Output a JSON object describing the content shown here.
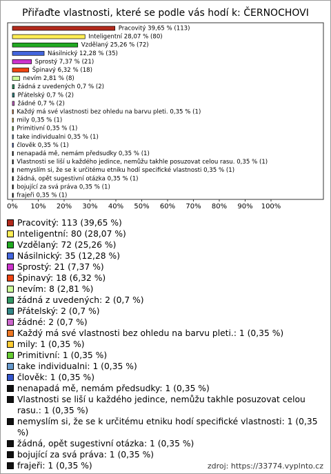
{
  "chart_data": {
    "type": "bar",
    "orientation": "horizontal",
    "title": "Přiřaďte vlastnosti, které se podle vás hodí k: ČERNOCHOVI",
    "categories": [
      "Pracovitý",
      "Inteligentní",
      "Vzdělaný",
      "Násilnický",
      "Sprostý",
      "Špinavý",
      "nevím",
      "žádná z uvedených",
      "Přátelský",
      "žádné",
      "Každý má své vlastnosti bez ohledu na barvu pleti.",
      "mily",
      "Primitivní",
      "take individualni",
      "člověk",
      "nenapadá mě, nemám předsudky",
      "Vlastnosti se liší u každého jedince, nemůžu takhle posuzovat celou rasu.",
      "nemyslím si, že se k určitému etniku hodí specifické vlastnosti",
      "žádná, opět sugestivní otázka",
      "bojující za svá práva",
      "frajeři"
    ],
    "values": [
      39.65,
      28.07,
      25.26,
      12.28,
      7.37,
      6.32,
      2.81,
      0.7,
      0.7,
      0.7,
      0.35,
      0.35,
      0.35,
      0.35,
      0.35,
      0.35,
      0.35,
      0.35,
      0.35,
      0.35,
      0.35
    ],
    "value_labels": [
      "Pracovitý 39,65 % (113)",
      "Inteligentní 28,07 % (80)",
      "Vzdělaný 25,26 % (72)",
      "Násilnický 12,28 % (35)",
      "Sprostý 7,37 % (21)",
      "Špinavý 6,32 % (18)",
      "nevím 2,81 % (8)",
      "žádná z uvedených 0,7 % (2)",
      "Přátelský 0,7 % (2)",
      "žádné 0,7 % (2)",
      "Každý má své vlastnosti bez ohledu na barvu pleti. 0,35 % (1)",
      "mily 0,35 % (1)",
      "Primitivní 0,35 % (1)",
      "take individualni 0,35 % (1)",
      "člověk 0,35 % (1)",
      "nenapadá mě, nemám předsudky 0,35 % (1)",
      "Vlastnosti se liší u každého jedince, nemůžu takhle posuzovat celou rasu. 0,35 % (1)",
      "nemyslím si, že se k určitému etniku hodí specifické vlastnosti 0,35 % (1)",
      "žádná, opět sugestivní otázka 0,35 % (1)",
      "bojující za svá práva 0,35 % (1)",
      "frajeři 0,35 % (1)"
    ],
    "colors": [
      "#b22a1c",
      "#ffee55",
      "#22aa22",
      "#4466dd",
      "#cc33cc",
      "#ee4411",
      "#ccff99",
      "#339966",
      "#338888",
      "#cc66cc",
      "#ee7722",
      "#ffcc33",
      "#66cc33",
      "#6699cc",
      "#3355cc",
      "#111111",
      "#111111",
      "#111111",
      "#111111",
      "#111111",
      "#111111"
    ],
    "legend_labels": [
      "Pracovitý: 113 (39,65 %)",
      "Inteligentní: 80 (28,07 %)",
      "Vzdělaný: 72 (25,26 %)",
      "Násilnický: 35 (12,28 %)",
      "Sprostý: 21 (7,37 %)",
      "Špinavý: 18 (6,32 %)",
      "nevím: 8 (2,81 %)",
      "žádná z uvedených: 2 (0,7 %)",
      "Přátelský: 2 (0,7 %)",
      "žádné: 2 (0,7 %)",
      "Každý má své vlastnosti bez ohledu na barvu pleti.: 1 (0,35 %)",
      "mily: 1 (0,35 %)",
      "Primitivní: 1 (0,35 %)",
      "take individualni: 1 (0,35 %)",
      "člověk: 1 (0,35 %)",
      "nenapadá mě, nemám předsudky: 1 (0,35 %)",
      "Vlastnosti se liší u každého jedince, nemůžu takhle posuzovat celou rasu.: 1 (0,35 %)",
      "nemyslím si, že se k určitému etniku hodí specifické vlastnosti: 1 (0,35 %)",
      "žádná, opět sugestivní otázka: 1 (0,35 %)",
      "bojující za svá práva: 1 (0,35 %)",
      "frajeři: 1 (0,35 %)"
    ],
    "xlim": [
      0,
      120
    ],
    "xticks": [
      {
        "value": 0,
        "label": "0%"
      },
      {
        "value": 10,
        "label": "10%"
      },
      {
        "value": 20,
        "label": "20%"
      },
      {
        "value": 30,
        "label": "30%"
      },
      {
        "value": 40,
        "label": "40%"
      },
      {
        "value": 50,
        "label": "50%"
      },
      {
        "value": 60,
        "label": "60%"
      },
      {
        "value": 70,
        "label": "70%"
      },
      {
        "value": 80,
        "label": "80%"
      },
      {
        "value": 90,
        "label": "90%"
      },
      {
        "value": 100,
        "label": "100%"
      }
    ]
  },
  "footer": "zdroj: https://33774.vyplnto.cz"
}
